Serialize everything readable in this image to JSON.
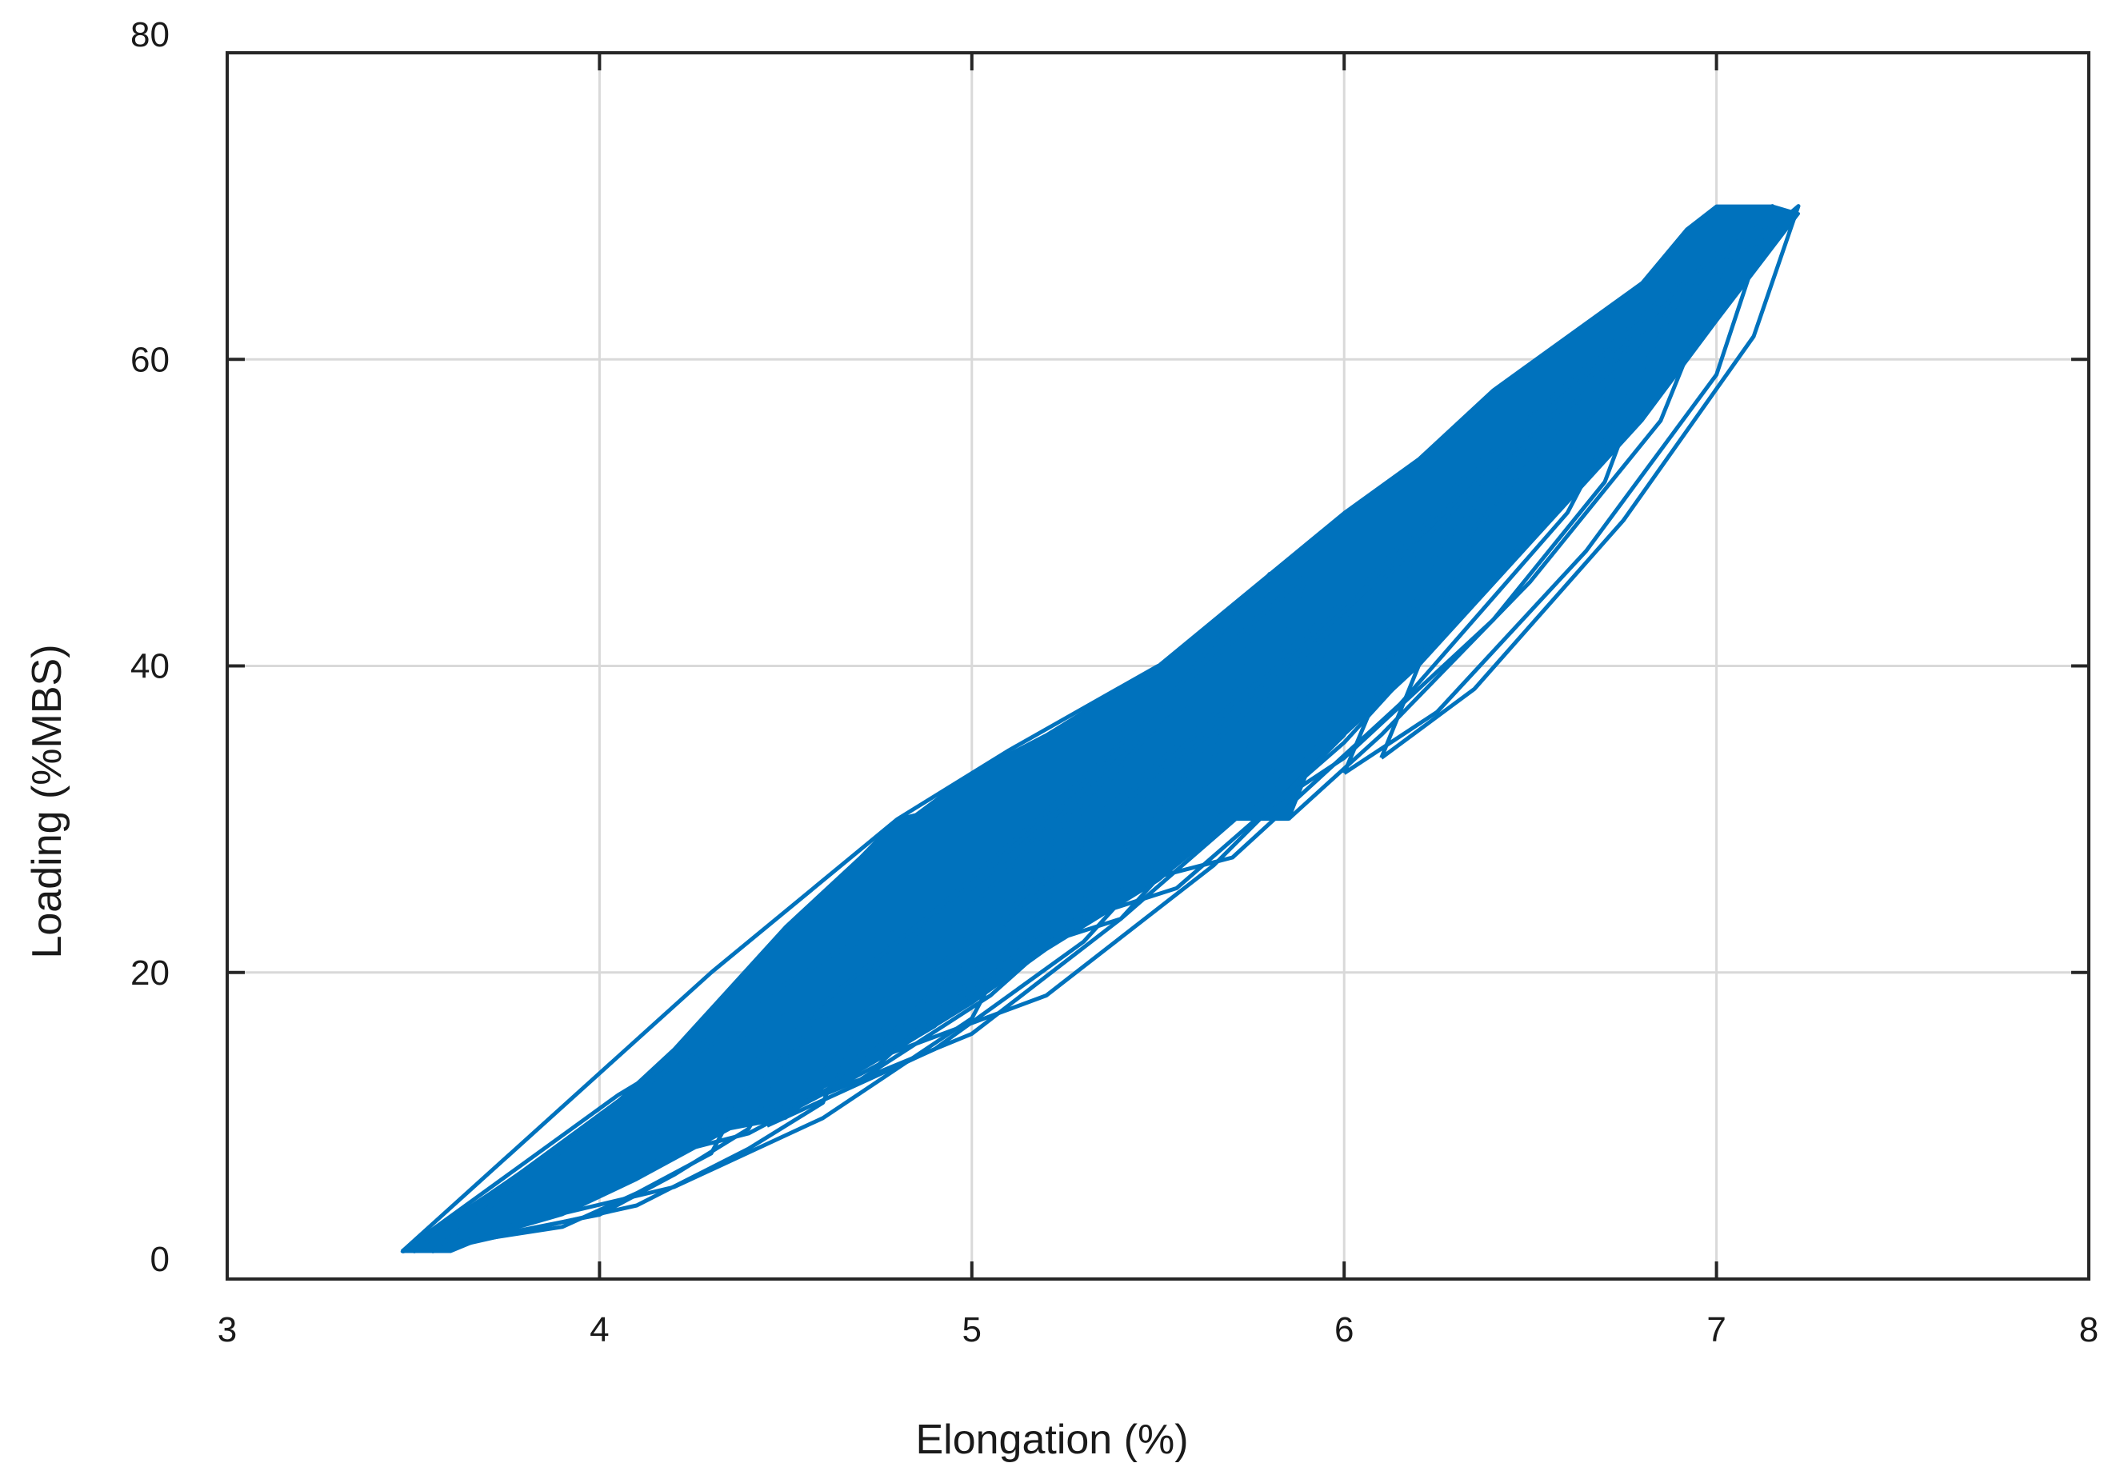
{
  "chart_data": {
    "type": "line",
    "title": "",
    "xlabel": "Elongation (%)",
    "ylabel": "Loading (%MBS)",
    "xlim": [
      3,
      8
    ],
    "ylim": [
      0,
      80
    ],
    "xticks": [
      3,
      4,
      5,
      6,
      7,
      8
    ],
    "yticks": [
      0,
      20,
      40,
      60,
      80
    ],
    "xtick_labels": [
      "3",
      "4",
      "5",
      "6",
      "7",
      "8"
    ],
    "ytick_labels": [
      "0",
      "20",
      "40",
      "60",
      "80"
    ],
    "grid": true,
    "legend": "none",
    "series": [
      {
        "color": "#0072BD",
        "hysteresis_loops": [
          {
            "x_min": 3.47,
            "x_max": 4.45,
            "y_min": 1.8,
            "y_max": 15.0,
            "upper_x": [
              4.05,
              4.2,
              4.35
            ],
            "upper_y": [
              12.0,
              14.2,
              16.2
            ],
            "lower_x": [
              3.9,
              4.1,
              4.3
            ],
            "lower_y": [
              3.4,
              5.6,
              8.2
            ]
          },
          {
            "x_min": 3.5,
            "x_max": 4.6,
            "y_min": 1.8,
            "y_max": 18.0,
            "upper_x": [
              4.1,
              4.3,
              4.5
            ],
            "upper_y": [
              12.5,
              15.0,
              17.5
            ],
            "lower_x": [
              4.0,
              4.2,
              4.4
            ],
            "lower_y": [
              4.2,
              6.8,
              9.8
            ]
          },
          {
            "x_min": 3.55,
            "x_max": 4.8,
            "y_min": 1.8,
            "y_max": 23.0,
            "upper_x": [
              4.2,
              4.45,
              4.65
            ],
            "upper_y": [
              14.0,
              18.5,
              21.5
            ],
            "lower_x": [
              4.1,
              4.4,
              4.6
            ],
            "lower_y": [
              4.8,
              8.5,
              11.5
            ]
          },
          {
            "x_min": 3.47,
            "x_max": 5.5,
            "y_min": 1.8,
            "y_max": 40.0,
            "upper_x": [
              4.3,
              4.8,
              5.1
            ],
            "upper_y": [
              20.0,
              30.0,
              34.5
            ],
            "lower_x": [
              4.2,
              4.6,
              5.0
            ],
            "lower_y": [
              6.0,
              10.5,
              17.0
            ]
          },
          {
            "x_min": 4.0,
            "x_max": 5.3,
            "y_min": 7.0,
            "y_max": 32.0,
            "upper_x": [
              4.5,
              4.8,
              5.05
            ],
            "upper_y": [
              16.0,
              22.0,
              27.0
            ],
            "lower_x": [
              4.4,
              4.75,
              5.0
            ],
            "lower_y": [
              9.5,
              14.0,
              19.5
            ]
          },
          {
            "x_min": 4.1,
            "x_max": 5.45,
            "y_min": 9.0,
            "y_max": 36.0,
            "upper_x": [
              4.6,
              4.9,
              5.2
            ],
            "upper_y": [
              18.0,
              24.0,
              30.5
            ],
            "lower_x": [
              4.55,
              4.9,
              5.2
            ],
            "lower_y": [
              11.5,
              16.5,
              23.0
            ]
          },
          {
            "x_min": 4.3,
            "x_max": 5.6,
            "y_min": 10.0,
            "y_max": 38.0,
            "upper_x": [
              4.75,
              5.05,
              5.35
            ],
            "upper_y": [
              20.5,
              26.5,
              33.0
            ],
            "lower_x": [
              4.7,
              5.05,
              5.35
            ],
            "lower_y": [
              13.0,
              18.5,
              25.0
            ]
          },
          {
            "x_min": 4.45,
            "x_max": 5.8,
            "y_min": 10.0,
            "y_max": 46.0,
            "upper_x": [
              4.95,
              5.25,
              5.55
            ],
            "upper_y": [
              23.0,
              30.5,
              38.5
            ],
            "lower_x": [
              4.9,
              5.3,
              5.6
            ],
            "lower_y": [
              15.0,
              22.0,
              30.0
            ]
          },
          {
            "x_min": 4.6,
            "x_max": 5.9,
            "y_min": 12.0,
            "y_max": 46.0,
            "upper_x": [
              5.05,
              5.35,
              5.65
            ],
            "upper_y": [
              24.0,
              32.0,
              40.5
            ],
            "lower_x": [
              5.0,
              5.4,
              5.7
            ],
            "lower_y": [
              16.0,
              23.5,
              31.5
            ]
          },
          {
            "x_min": 4.7,
            "x_max": 6.2,
            "y_min": 14.0,
            "y_max": 48.0,
            "upper_x": [
              5.2,
              5.6,
              5.95
            ],
            "upper_y": [
              26.0,
              35.5,
              42.5
            ],
            "lower_x": [
              5.2,
              5.65,
              6.0
            ],
            "lower_y": [
              18.5,
              27.0,
              35.5
            ]
          },
          {
            "x_min": 5.75,
            "x_max": 6.9,
            "y_min": 30.0,
            "y_max": 65.0,
            "upper_x": [
              6.0,
              6.35,
              6.65
            ],
            "upper_y": [
              44.0,
              53.0,
              59.5
            ],
            "lower_x": [
              6.0,
              6.4,
              6.7
            ],
            "lower_y": [
              34.0,
              43.0,
              52.0
            ]
          },
          {
            "x_min": 5.85,
            "x_max": 7.05,
            "y_min": 30.0,
            "y_max": 68.0,
            "upper_x": [
              6.1,
              6.45,
              6.8
            ],
            "upper_y": [
              45.5,
              55.0,
              62.5
            ],
            "lower_x": [
              6.1,
              6.5,
              6.85
            ],
            "lower_y": [
              35.5,
              45.5,
              56.0
            ]
          },
          {
            "x_min": 6.0,
            "x_max": 7.15,
            "y_min": 33.0,
            "y_max": 70.0,
            "upper_x": [
              6.25,
              6.6,
              6.95
            ],
            "upper_y": [
              47.5,
              57.5,
              65.0
            ],
            "lower_x": [
              6.25,
              6.65,
              7.0
            ],
            "lower_y": [
              37.0,
              47.5,
              59.0
            ]
          },
          {
            "x_min": 6.1,
            "x_max": 7.22,
            "y_min": 34.0,
            "y_max": 70.0,
            "upper_x": [
              6.35,
              6.7,
              7.05
            ],
            "upper_y": [
              49.0,
              59.0,
              66.5
            ],
            "lower_x": [
              6.35,
              6.75,
              7.1
            ],
            "lower_y": [
              38.5,
              49.5,
              61.5
            ]
          },
          {
            "x_min": 4.95,
            "x_max": 6.5,
            "y_min": 20.0,
            "y_max": 55.0,
            "upper_x": [
              5.35,
              5.8,
              6.2
            ],
            "upper_y": [
              30.5,
              40.0,
              48.5
            ],
            "lower_x": [
              5.4,
              5.85,
              6.25
            ],
            "lower_y": [
              23.5,
              33.0,
              44.0
            ]
          },
          {
            "x_min": 5.1,
            "x_max": 6.75,
            "y_min": 22.0,
            "y_max": 60.0,
            "upper_x": [
              5.5,
              5.95,
              6.4
            ],
            "upper_y": [
              32.5,
              42.5,
              52.5
            ],
            "lower_x": [
              5.55,
              6.0,
              6.45
            ],
            "lower_y": [
              25.5,
              35.0,
              47.0
            ]
          },
          {
            "x_min": 5.3,
            "x_max": 6.9,
            "y_min": 25.0,
            "y_max": 64.0,
            "upper_x": [
              5.65,
              6.1,
              6.55
            ],
            "upper_y": [
              35.0,
              45.5,
              56.5
            ],
            "lower_x": [
              5.7,
              6.15,
              6.6
            ],
            "lower_y": [
              27.5,
              37.5,
              50.0
            ]
          }
        ],
        "outline": {
          "upper": [
            [
              3.47,
              1.8
            ],
            [
              3.7,
              5.5
            ],
            [
              4.0,
              10.5
            ],
            [
              4.2,
              15.0
            ],
            [
              4.5,
              23.0
            ],
            [
              4.7,
              27.5
            ],
            [
              4.8,
              30.0
            ],
            [
              4.85,
              30.3
            ],
            [
              5.0,
              33.0
            ],
            [
              5.2,
              35.5
            ],
            [
              5.5,
              40.0
            ],
            [
              5.8,
              46.0
            ],
            [
              6.0,
              50.0
            ],
            [
              6.2,
              53.5
            ],
            [
              6.4,
              58.0
            ],
            [
              6.6,
              61.5
            ],
            [
              6.8,
              65.0
            ],
            [
              6.92,
              68.5
            ],
            [
              7.0,
              70.0
            ],
            [
              7.15,
              70.0
            ],
            [
              7.22,
              69.5
            ]
          ],
          "lower": [
            [
              7.22,
              69.5
            ],
            [
              7.0,
              62.5
            ],
            [
              6.8,
              56.0
            ],
            [
              6.5,
              48.0
            ],
            [
              6.2,
              40.0
            ],
            [
              6.0,
              35.5
            ],
            [
              5.9,
              33.0
            ],
            [
              5.85,
              30.0
            ],
            [
              5.7,
              30.0
            ],
            [
              5.5,
              26.0
            ],
            [
              5.2,
              21.5
            ],
            [
              5.0,
              18.0
            ],
            [
              4.8,
              15.0
            ],
            [
              4.6,
              12.5
            ],
            [
              4.5,
              10.5
            ],
            [
              4.35,
              9.8
            ],
            [
              4.1,
              6.5
            ],
            [
              3.9,
              4.2
            ],
            [
              3.7,
              2.8
            ],
            [
              3.6,
              1.8
            ],
            [
              3.47,
              1.8
            ]
          ]
        }
      }
    ]
  }
}
